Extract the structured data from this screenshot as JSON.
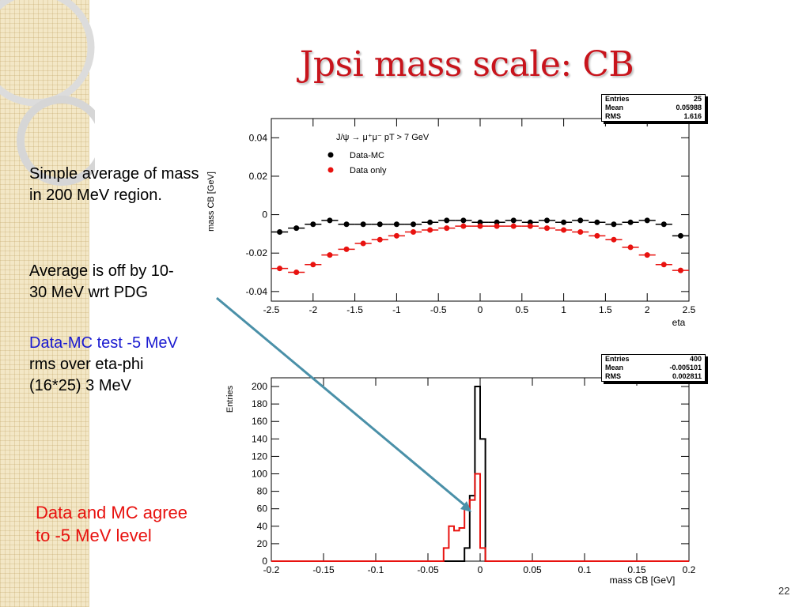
{
  "slide": {
    "title": "Jpsi mass scale: CB",
    "page_number": "22"
  },
  "notes": {
    "p1": "Simple average of mass in 200 MeV region.",
    "p2_l1": " Average is off by 10-",
    "p2_l2": "30 MeV wrt PDG",
    "p3_blue": "Data-MC test -5 MeV",
    "p3_l2": "rms over eta-phi",
    "p3_l3": "(16*25) 3 MeV",
    "conclusion_l1": "Data and MC agree",
    "conclusion_l2": "to -5 MeV level"
  },
  "stats_top": {
    "entries_label": "Entries",
    "entries": "25",
    "mean_label": "Mean",
    "mean": "0.05988",
    "rms_label": "RMS",
    "rms": "1.616"
  },
  "stats_bottom": {
    "entries_label": "Entries",
    "entries": "400",
    "mean_label": "Mean",
    "mean": "-0.005101",
    "rms_label": "RMS",
    "rms": "0.002811"
  },
  "colors": {
    "data_mc": "#000000",
    "data_only": "#e8120f",
    "title": "#c8141c",
    "arrow": "#4a90a8"
  },
  "chart_data": [
    {
      "type": "scatter",
      "xlabel": "eta",
      "ylabel": "mass CB [GeV]",
      "xlim": [
        -2.5,
        2.5
      ],
      "ylim": [
        -0.045,
        0.05
      ],
      "xticks": [
        -2.5,
        -2,
        -1.5,
        -1,
        -0.5,
        0,
        0.5,
        1,
        1.5,
        2,
        2.5
      ],
      "yticks": [
        -0.04,
        -0.02,
        0,
        0.02,
        0.04
      ],
      "ytick_labels": [
        "-0.04",
        "-0.02",
        "0",
        "0.02",
        "0.04"
      ],
      "annotation": "J/ψ → μ⁺μ⁻  pT > 7 GeV",
      "x": [
        -2.4,
        -2.2,
        -2.0,
        -1.8,
        -1.6,
        -1.4,
        -1.2,
        -1.0,
        -0.8,
        -0.6,
        -0.4,
        -0.2,
        0.0,
        0.2,
        0.4,
        0.6,
        0.8,
        1.0,
        1.2,
        1.4,
        1.6,
        1.8,
        2.0,
        2.2,
        2.4
      ],
      "series": [
        {
          "name": "Data-MC",
          "values": [
            -0.009,
            -0.007,
            -0.005,
            -0.003,
            -0.005,
            -0.005,
            -0.005,
            -0.005,
            -0.005,
            -0.004,
            -0.003,
            -0.003,
            -0.004,
            -0.004,
            -0.003,
            -0.004,
            -0.003,
            -0.004,
            -0.003,
            -0.004,
            -0.005,
            -0.004,
            -0.003,
            -0.005,
            -0.011
          ]
        },
        {
          "name": "Data only",
          "values": [
            -0.028,
            -0.03,
            -0.026,
            -0.021,
            -0.018,
            -0.015,
            -0.013,
            -0.011,
            -0.009,
            -0.008,
            -0.007,
            -0.006,
            -0.006,
            -0.006,
            -0.006,
            -0.006,
            -0.007,
            -0.008,
            -0.009,
            -0.011,
            -0.013,
            -0.017,
            -0.021,
            -0.026,
            -0.029
          ]
        }
      ],
      "legend": "top-left"
    },
    {
      "type": "bar",
      "xlabel": "mass CB [GeV]",
      "ylabel": "Entries",
      "xlim": [
        -0.2,
        0.2
      ],
      "ylim": [
        0,
        210
      ],
      "xticks": [
        -0.2,
        -0.15,
        -0.1,
        -0.05,
        0,
        0.05,
        0.1,
        0.15,
        0.2
      ],
      "xtick_labels": [
        "-0.2",
        "-0.15",
        "-0.1",
        "-0.05",
        "0",
        "0.05",
        "0.1",
        "0.15",
        "0.2"
      ],
      "yticks": [
        0,
        20,
        40,
        60,
        80,
        100,
        120,
        140,
        160,
        180,
        200
      ],
      "bin_edges": [
        -0.04,
        -0.035,
        -0.03,
        -0.025,
        -0.02,
        -0.015,
        -0.01,
        -0.005,
        0.0,
        0.005
      ],
      "series": [
        {
          "name": "",
          "color": "#000000",
          "values": [
            0,
            0,
            0,
            0,
            0,
            15,
            75,
            200,
            140,
            5
          ]
        },
        {
          "name": "",
          "color": "#e8120f",
          "values": [
            0,
            15,
            40,
            35,
            38,
            60,
            70,
            100,
            15,
            0
          ]
        }
      ]
    }
  ]
}
